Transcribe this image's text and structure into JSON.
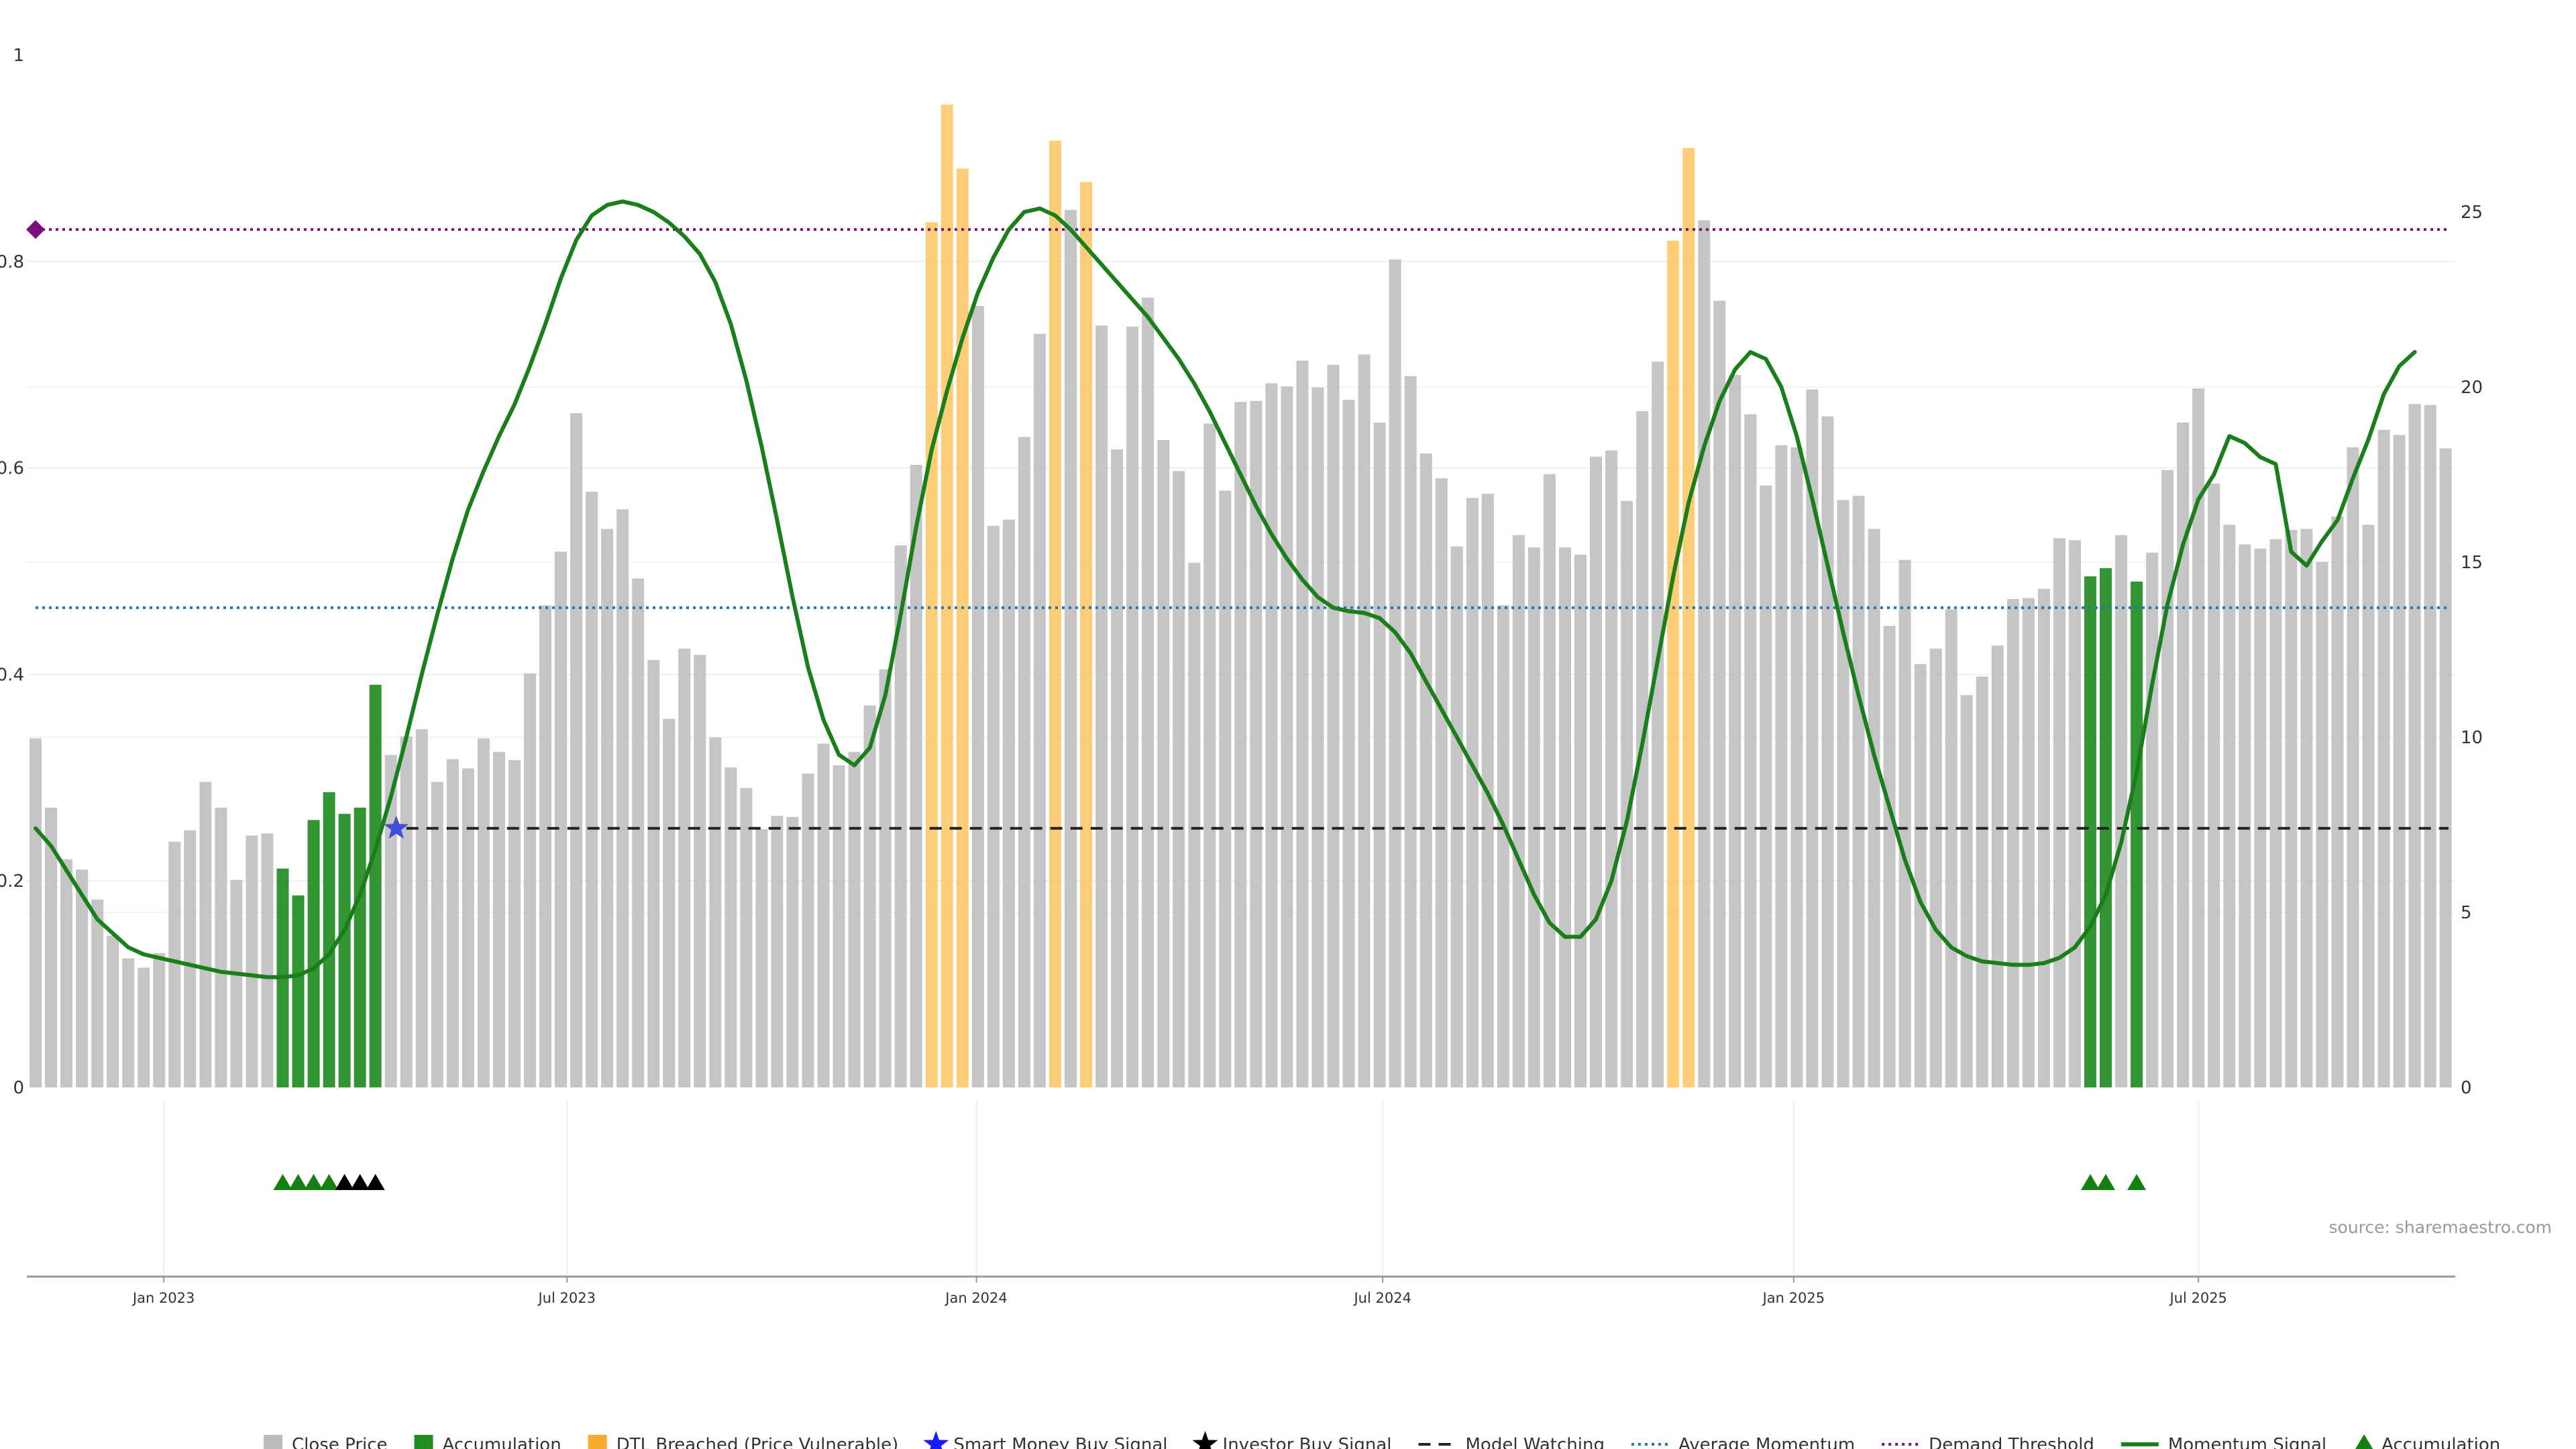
{
  "chart_data": {
    "type": "bar",
    "source_note": "source: sharemaestro.com",
    "x_ticks": [
      "Jan 2023",
      "Jul 2023",
      "Jan 2024",
      "Jul 2024",
      "Jan 2025",
      "Jul 2025"
    ],
    "y_left": {
      "ylim": [
        0,
        1
      ],
      "ticks": [
        "0",
        "0.2",
        "0.4",
        "0.6",
        "0.8",
        "1"
      ]
    },
    "y_right": {
      "ylim": [
        0,
        29.5
      ],
      "ticks": [
        "0",
        "5",
        "10",
        "15",
        "20",
        "25"
      ]
    },
    "legend": [
      {
        "label": "Close Price",
        "marker": "square",
        "color": "#bbbbbb"
      },
      {
        "label": "Accumulation",
        "marker": "square",
        "color": "#228b22"
      },
      {
        "label": "DTL Breached (Price Vulnerable)",
        "marker": "square",
        "color": "#f5a623"
      },
      {
        "label": "Smart Money Buy Signal",
        "marker": "star",
        "color": "#1a1aff"
      },
      {
        "label": "Investor Buy Signal",
        "marker": "star",
        "color": "#000000"
      },
      {
        "label": "Model Watching",
        "marker": "dash",
        "color": "#222222"
      },
      {
        "label": "Average Momentum",
        "marker": "dot",
        "color": "#1f77b4"
      },
      {
        "label": "Demand Threshold",
        "marker": "dot",
        "color": "#7b0f7b"
      },
      {
        "label": "Momentum Signal",
        "marker": "line",
        "color": "#1a7f1a"
      },
      {
        "label": "Accumulation",
        "marker": "triangle",
        "color": "#138013"
      }
    ],
    "colors": {
      "close": "#bbbbbb",
      "accumulation": "#228b22",
      "dtl": "#fdc460",
      "momentum": "#1a7f1a",
      "average": "#1f77b4",
      "demand": "#7b0f7b",
      "watching": "#222222",
      "smart_star": "#3f4fd9",
      "investor_star": "#000000",
      "triangle": "#138013"
    },
    "bars": {
      "close_price": [
        0.338,
        0.271,
        0.221,
        0.211,
        0.182,
        0.147,
        0.125,
        0.116,
        0.13,
        0.238,
        0.249,
        0.296,
        0.271,
        0.201,
        0.244,
        0.246,
        0.212,
        0.186,
        0.259,
        0.286,
        0.265,
        0.271,
        0.39,
        0.322,
        0.34,
        0.347,
        0.296,
        0.318,
        0.309,
        0.338,
        0.325,
        0.317,
        0.401,
        0.467,
        0.519,
        0.653,
        0.577,
        0.541,
        0.56,
        0.493,
        0.414,
        0.357,
        0.425,
        0.419,
        0.339,
        0.31,
        0.29,
        0.25,
        0.263,
        0.262,
        0.304,
        0.333,
        0.312,
        0.325,
        0.37,
        0.405,
        0.525,
        0.603,
        0.838,
        0.952,
        0.89,
        0.757,
        0.544,
        0.55,
        0.63,
        0.73,
        0.917,
        0.85,
        0.877,
        0.738,
        0.618,
        0.737,
        0.765,
        0.627,
        0.597,
        0.508,
        0.643,
        0.578,
        0.664,
        0.665,
        0.682,
        0.679,
        0.704,
        0.678,
        0.7,
        0.666,
        0.71,
        0.644,
        0.802,
        0.689,
        0.614,
        0.59,
        0.524,
        0.571,
        0.575,
        0.467,
        0.535,
        0.523,
        0.594,
        0.523,
        0.516,
        0.611,
        0.617,
        0.568,
        0.655,
        0.703,
        0.82,
        0.91,
        0.84,
        0.762,
        0.69,
        0.652,
        0.583,
        0.622,
        0.62,
        0.676,
        0.65,
        0.569,
        0.573,
        0.541,
        0.447,
        0.511,
        0.41,
        0.425,
        0.463,
        0.38,
        0.398,
        0.428,
        0.473,
        0.474,
        0.483,
        0.532,
        0.53,
        0.495,
        0.503,
        0.535,
        0.49,
        0.518,
        0.598,
        0.644,
        0.677,
        0.585,
        0.545,
        0.526,
        0.522,
        0.531,
        0.54,
        0.541,
        0.509,
        0.553,
        0.62,
        0.545,
        0.637,
        0.632,
        0.662,
        0.661,
        0.619
      ],
      "accumulation_idx": [
        16,
        17,
        18,
        19,
        20,
        21,
        22,
        133,
        134,
        136
      ],
      "dtl_idx": [
        58,
        59,
        60,
        66,
        68,
        106,
        107
      ]
    },
    "momentum_signal_right_axis": [
      7.4,
      6.9,
      6.2,
      5.5,
      4.8,
      4.4,
      4.0,
      3.8,
      3.7,
      3.6,
      3.5,
      3.4,
      3.3,
      3.25,
      3.2,
      3.15,
      3.15,
      3.2,
      3.4,
      3.8,
      4.5,
      5.5,
      6.8,
      8.3,
      10.0,
      11.8,
      13.5,
      15.1,
      16.5,
      17.6,
      18.6,
      19.5,
      20.6,
      21.8,
      23.1,
      24.2,
      24.9,
      25.2,
      25.3,
      25.2,
      25.0,
      24.7,
      24.3,
      23.8,
      23.0,
      21.8,
      20.2,
      18.3,
      16.2,
      14.0,
      12.0,
      10.5,
      9.5,
      9.2,
      9.7,
      11.2,
      13.5,
      16.0,
      18.2,
      19.9,
      21.4,
      22.7,
      23.7,
      24.5,
      25.0,
      25.1,
      24.9,
      24.5,
      24.0,
      23.5,
      23.0,
      22.5,
      22.0,
      21.4,
      20.8,
      20.1,
      19.3,
      18.4,
      17.5,
      16.6,
      15.8,
      15.1,
      14.5,
      14.0,
      13.7,
      13.6,
      13.55,
      13.4,
      13.0,
      12.4,
      11.6,
      10.8,
      10.0,
      9.2,
      8.4,
      7.5,
      6.5,
      5.5,
      4.7,
      4.3,
      4.3,
      4.8,
      5.9,
      7.6,
      9.8,
      12.2,
      14.6,
      16.7,
      18.3,
      19.6,
      20.5,
      21.0,
      20.8,
      20.0,
      18.6,
      16.8,
      14.9,
      13.0,
      11.2,
      9.5,
      8.0,
      6.5,
      5.3,
      4.5,
      4.0,
      3.75,
      3.6,
      3.55,
      3.5,
      3.5,
      3.55,
      3.7,
      4.0,
      4.6,
      5.5,
      7.0,
      9.0,
      11.5,
      13.8,
      15.5,
      16.8,
      17.5,
      18.6,
      18.4,
      18.0,
      17.8,
      15.3,
      14.9,
      15.6,
      16.2,
      17.4,
      18.5,
      19.8,
      20.6,
      21.0
    ],
    "average_momentum": 13.7,
    "demand_threshold": 24.5,
    "model_watching": 7.4,
    "model_watching_from_idx": 24,
    "smart_money_signal": {
      "bar_index": 23,
      "value": 7.4
    },
    "demand_marker_idx": 0,
    "signal_triangles": {
      "accumulation_idx": [
        16,
        17,
        18,
        19,
        133,
        134,
        136
      ],
      "investor_idx": [
        20,
        21,
        22
      ]
    }
  }
}
